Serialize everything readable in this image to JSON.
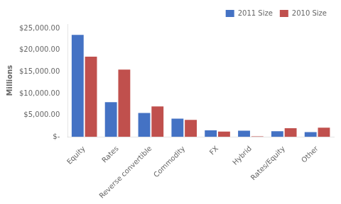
{
  "chart_data": {
    "type": "bar",
    "categories": [
      "Equity",
      "Rates",
      "Reverse convertible",
      "Commodity",
      "FX",
      "Hybrid",
      "Rates/Equity",
      "Other"
    ],
    "series": [
      {
        "name": "2011 Size",
        "color": "#4472C4",
        "values": [
          23500,
          8000,
          5500,
          4200,
          1500,
          1400,
          1300,
          1100
        ]
      },
      {
        "name": "2010 Size",
        "color": "#C0504D",
        "values": [
          18500,
          15500,
          7000,
          3900,
          1200,
          100,
          2000,
          2100
        ]
      }
    ],
    "ylabel": "Millions",
    "ylim": [
      0,
      26000
    ],
    "yticks": [
      {
        "value": 0,
        "label": "$-"
      },
      {
        "value": 5000,
        "label": "$5,000.00"
      },
      {
        "value": 10000,
        "label": "$10,000.00"
      },
      {
        "value": 15000,
        "label": "$15,000.00"
      },
      {
        "value": 20000,
        "label": "$20,000.00"
      },
      {
        "value": 25000,
        "label": "$25,000.00"
      }
    ],
    "grid": false,
    "legend": "upper right"
  }
}
